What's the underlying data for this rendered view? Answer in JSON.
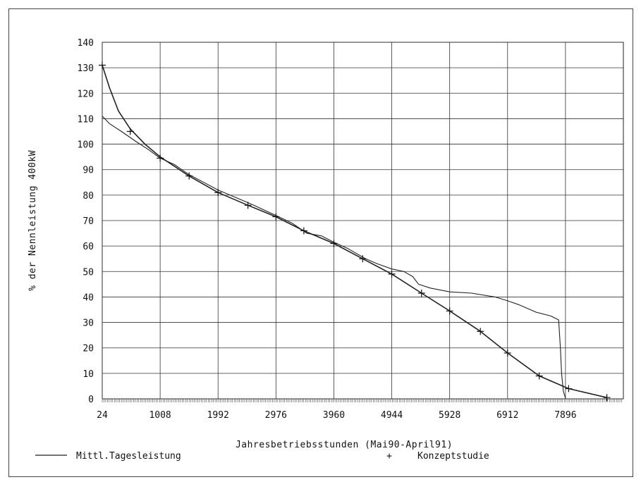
{
  "chart_data": {
    "type": "line",
    "xlabel": "Jahresbetriebsstunden (Mai90-April91)",
    "ylabel": "% der Nennleistung 400kW",
    "x_tick_labels": [
      "24",
      "1008",
      "1992",
      "2976",
      "3960",
      "4944",
      "5928",
      "6912",
      "7896"
    ],
    "y_ticks": [
      0,
      10,
      20,
      30,
      40,
      50,
      60,
      70,
      80,
      90,
      100,
      110,
      120,
      130,
      140
    ],
    "xlim": [
      24,
      8880
    ],
    "ylim": [
      0,
      140
    ],
    "grid": true,
    "series": [
      {
        "name": "Mittl.Tagesleistung",
        "style": "line",
        "points": [
          [
            24,
            111
          ],
          [
            150,
            108
          ],
          [
            350,
            105
          ],
          [
            600,
            101
          ],
          [
            800,
            98
          ],
          [
            1008,
            94.5
          ],
          [
            1250,
            92
          ],
          [
            1500,
            88
          ],
          [
            1750,
            85
          ],
          [
            1992,
            82
          ],
          [
            2300,
            79
          ],
          [
            2600,
            76
          ],
          [
            2976,
            72
          ],
          [
            3250,
            69
          ],
          [
            3500,
            65
          ],
          [
            3750,
            64
          ],
          [
            3960,
            61.5
          ],
          [
            4200,
            59
          ],
          [
            4500,
            55
          ],
          [
            4700,
            53
          ],
          [
            4944,
            51
          ],
          [
            5150,
            50
          ],
          [
            5300,
            48
          ],
          [
            5400,
            45
          ],
          [
            5600,
            43.5
          ],
          [
            5928,
            42
          ],
          [
            6300,
            41.5
          ],
          [
            6700,
            40
          ],
          [
            6912,
            38.5
          ],
          [
            7100,
            37
          ],
          [
            7400,
            34
          ],
          [
            7650,
            32.5
          ],
          [
            7780,
            31
          ],
          [
            7810,
            20
          ],
          [
            7830,
            10
          ],
          [
            7860,
            3
          ],
          [
            7900,
            0
          ]
        ]
      },
      {
        "name": "Konzeptstudie",
        "style": "line-with-plus-markers",
        "points": [
          [
            24,
            131
          ],
          [
            150,
            122
          ],
          [
            300,
            113
          ],
          [
            500,
            106
          ],
          [
            750,
            100
          ],
          [
            1008,
            95
          ],
          [
            1500,
            87.5
          ],
          [
            1992,
            81
          ],
          [
            2500,
            76
          ],
          [
            2976,
            71.5
          ],
          [
            3450,
            66
          ],
          [
            3960,
            61
          ],
          [
            4450,
            55
          ],
          [
            4944,
            49
          ],
          [
            5450,
            41.5
          ],
          [
            5928,
            34.5
          ],
          [
            6450,
            26.5
          ],
          [
            6912,
            18
          ],
          [
            7450,
            9
          ],
          [
            7950,
            4
          ],
          [
            8600,
            0.5
          ]
        ],
        "markers": [
          [
            24,
            131
          ],
          [
            500,
            105
          ],
          [
            1008,
            94.5
          ],
          [
            1500,
            87.5
          ],
          [
            1992,
            81
          ],
          [
            2500,
            76
          ],
          [
            2976,
            71.5
          ],
          [
            3450,
            66
          ],
          [
            3960,
            61
          ],
          [
            4450,
            55
          ],
          [
            4944,
            49
          ],
          [
            5450,
            41.5
          ],
          [
            5928,
            34.5
          ],
          [
            6450,
            26.5
          ],
          [
            6912,
            18
          ],
          [
            7450,
            9
          ],
          [
            7950,
            4
          ],
          [
            8600,
            0.5
          ]
        ]
      }
    ],
    "legend": {
      "placement": "bottom",
      "entries": [
        {
          "label": "Mittl.Tagesleistung",
          "symbol": "line"
        },
        {
          "label": "Konzeptstudie",
          "symbol": "+"
        }
      ]
    }
  }
}
